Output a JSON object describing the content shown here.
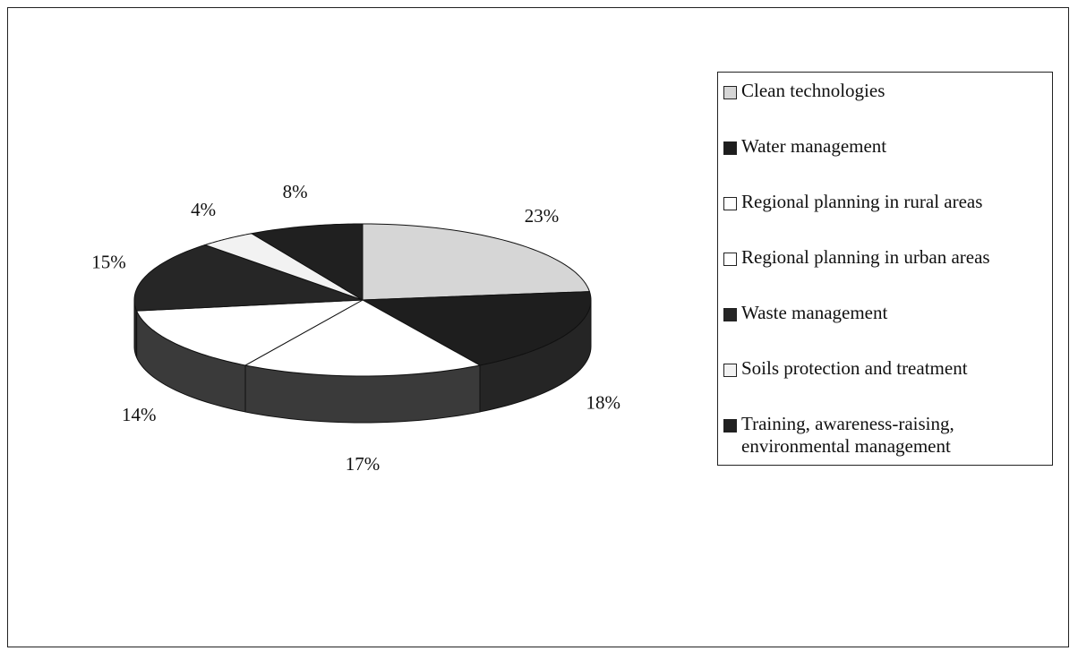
{
  "chart_data": {
    "type": "pie3d",
    "categories": [
      "Clean technologies",
      "Water management",
      "Regional planning in rural areas",
      "Regional planning in urban areas",
      "Waste management",
      "Soils protection and treatment",
      "Training, awareness-raising, environmental management"
    ],
    "values": [
      23,
      18,
      17,
      14,
      15,
      4,
      8
    ],
    "value_labels": [
      "23%",
      "18%",
      "17%",
      "14%",
      "15%",
      "4%",
      "8%"
    ],
    "colors": [
      "#d6d6d6",
      "#1e1e1e",
      "#ffffff",
      "#ffffff",
      "#262626",
      "#f2f2f2",
      "#202020"
    ],
    "legend": "right"
  }
}
